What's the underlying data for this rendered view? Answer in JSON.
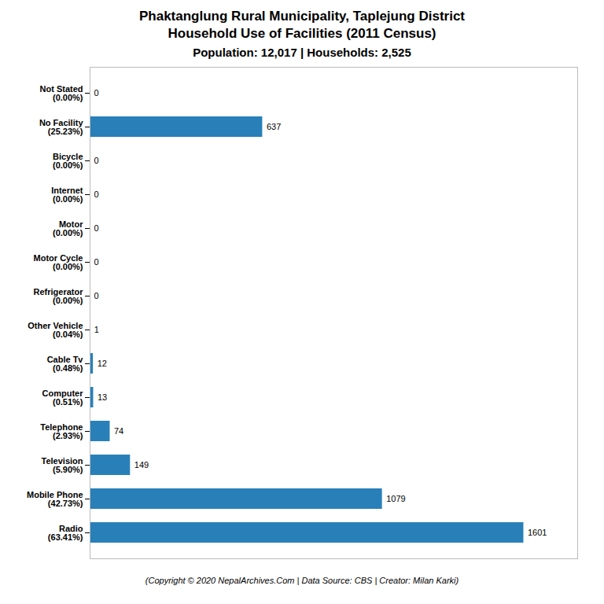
{
  "chart_data": {
    "type": "bar",
    "orientation": "horizontal",
    "title": "Phaktanglung Rural Municipality, Taplejung District\nHousehold Use of Facilities (2011 Census)",
    "subtitle": "Population: 12,017 | Households: 2,525",
    "annotations": [
      "(Copyright © 2020 NepalArchives.Com | Data Source: CBS | Creator: Milan Karki)"
    ],
    "categories": [
      "Radio\n(63.41%)",
      "Mobile Phone\n(42.73%)",
      "Television\n(5.90%)",
      "Telephone\n(2.93%)",
      "Computer\n(0.51%)",
      "Cable Tv\n(0.48%)",
      "Other Vehicle\n(0.04%)",
      "Refrigerator\n(0.00%)",
      "Motor Cycle\n(0.00%)",
      "Motor\n(0.00%)",
      "Internet\n(0.00%)",
      "Bicycle\n(0.00%)",
      "No Facility\n(25.23%)",
      "Not Stated\n(0.00%)"
    ],
    "values": [
      1601,
      1079,
      149,
      74,
      13,
      12,
      1,
      0,
      0,
      0,
      0,
      0,
      637,
      0
    ],
    "color": "#2980b9",
    "xlim": [
      0,
      1800
    ],
    "xticks": [],
    "data_labels": true,
    "tick_labels": "y",
    "grid": false
  }
}
